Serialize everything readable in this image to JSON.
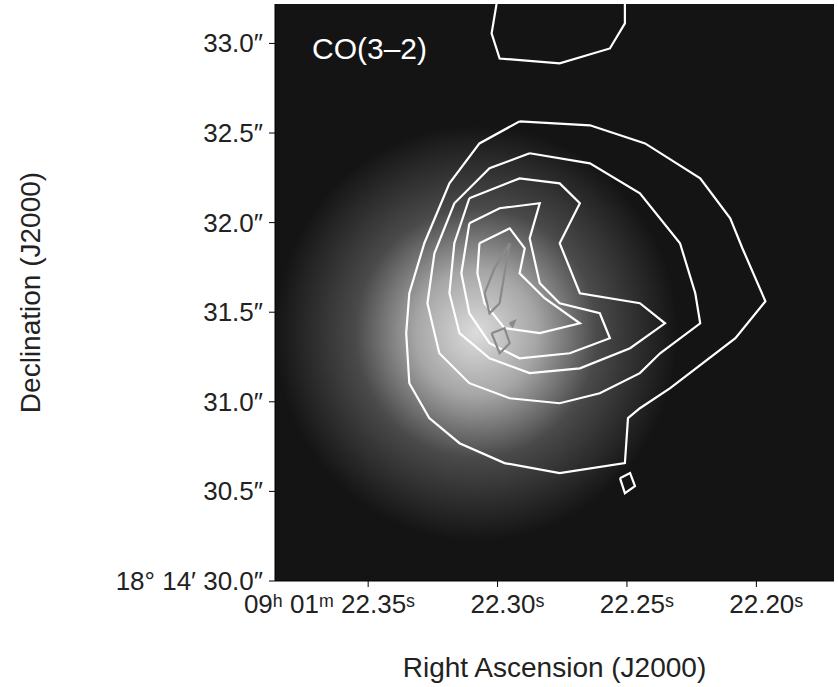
{
  "chart_data": {
    "type": "contour",
    "annotation": "CO(3–2)",
    "x_label": "Right Ascension (J2000)",
    "y_label": "Declination (J2000)",
    "xlim": [
      22.386,
      22.17
    ],
    "ylim": [
      30.0,
      33.22
    ],
    "xticks": [
      {
        "value": 22.35,
        "label": "09ʰ 01ᵐ 22.35ˢ"
      },
      {
        "value": 22.3,
        "label": "22.30ˢ"
      },
      {
        "value": 22.25,
        "label": "22.25ˢ"
      },
      {
        "value": 22.2,
        "label": "22.20ˢ"
      }
    ],
    "yticks": [
      {
        "value": 30.0,
        "label": "18° 14′ 30.0″"
      },
      {
        "value": 30.5,
        "label": "30.5″"
      },
      {
        "value": 31.0,
        "label": "31.0″"
      },
      {
        "value": 31.5,
        "label": "31.5″"
      },
      {
        "value": 32.0,
        "label": "32.0″"
      },
      {
        "value": 32.5,
        "label": "32.5″"
      },
      {
        "value": 33.0,
        "label": "33.0″"
      }
    ],
    "series": [
      {
        "color": "#ffffff",
        "x": [
          22.2915,
          22.2643,
          22.243,
          22.2217,
          22.2101,
          22.2054,
          22.1965,
          22.2081,
          22.2333,
          22.245,
          22.2496,
          22.2508,
          22.276,
          22.2973,
          22.3147,
          22.3264,
          22.3341,
          22.3353,
          22.3341,
          22.3283,
          22.3186,
          22.307,
          22.2915
        ],
        "y": [
          32.565,
          32.543,
          32.442,
          32.247,
          32.024,
          31.857,
          31.561,
          31.355,
          31.076,
          30.964,
          30.909,
          30.658,
          30.602,
          30.658,
          30.769,
          30.909,
          31.104,
          31.383,
          31.606,
          31.885,
          32.219,
          32.442,
          32.565
        ]
      },
      {
        "color": "#ffffff",
        "x": [
          22.2876,
          22.2643,
          22.245,
          22.2295,
          22.2236,
          22.2217,
          22.2372,
          22.245,
          22.2605,
          22.276,
          22.2953,
          22.3109,
          22.3225,
          22.3271,
          22.3244,
          22.3167,
          22.3031,
          22.2876
        ],
        "y": [
          32.387,
          32.331,
          32.163,
          31.885,
          31.606,
          31.438,
          31.271,
          31.16,
          31.048,
          30.992,
          31.02,
          31.104,
          31.271,
          31.55,
          31.829,
          32.108,
          32.303,
          32.387
        ]
      },
      {
        "color": "#ffffff",
        "x": [
          22.3109,
          22.2915,
          22.276,
          22.2682,
          22.276,
          22.2682,
          22.245,
          22.2353,
          22.2488,
          22.2682,
          22.2876,
          22.3031,
          22.3147,
          22.3186,
          22.3167,
          22.3109
        ],
        "y": [
          32.136,
          32.247,
          32.219,
          32.108,
          31.885,
          31.606,
          31.55,
          31.438,
          31.299,
          31.187,
          31.16,
          31.243,
          31.383,
          31.606,
          31.885,
          32.136
        ]
      },
      {
        "color": "#ffffff",
        "x": [
          22.3109,
          22.2992,
          22.2837,
          22.2876,
          22.2837,
          22.276,
          22.2605,
          22.2566,
          22.2721,
          22.2915,
          22.3031,
          22.3109,
          22.314,
          22.3109
        ],
        "y": [
          31.996,
          32.08,
          32.108,
          31.912,
          31.662,
          31.55,
          31.494,
          31.355,
          31.271,
          31.243,
          31.327,
          31.494,
          31.717,
          31.996
        ]
      },
      {
        "color": "#ffffff",
        "x": [
          22.307,
          22.2953,
          22.2895,
          22.2915,
          22.2818,
          22.2682,
          22.2837,
          22.2973,
          22.305,
          22.3078,
          22.307
        ],
        "y": [
          31.885,
          31.968,
          31.857,
          31.717,
          31.578,
          31.438,
          31.383,
          31.411,
          31.55,
          31.717,
          31.885
        ]
      },
      {
        "color": "#8a8a8a",
        "x": [
          22.305,
          22.3012,
          22.2953,
          22.2973,
          22.2992,
          22.3031,
          22.305
        ],
        "y": [
          31.606,
          31.745,
          31.885,
          31.717,
          31.55,
          31.494,
          31.606
        ]
      },
      {
        "color": "#8a8a8a",
        "x": [
          22.3023,
          22.2973,
          22.2953,
          22.2992,
          22.3023
        ],
        "y": [
          31.383,
          31.411,
          31.327,
          31.271,
          31.383
        ]
      },
      {
        "color": "#8a8a8a",
        "x": [
          22.2953,
          22.2934,
          22.2942,
          22.2953
        ],
        "y": [
          31.438,
          31.45,
          31.422,
          31.438
        ]
      },
      {
        "color": "#ffffff",
        "x": [
          22.3004,
          22.3023,
          22.2992,
          22.276,
          22.2566,
          22.2508,
          22.2508
        ],
        "y": [
          33.22,
          33.056,
          32.916,
          32.889,
          32.972,
          33.112,
          33.22
        ]
      },
      {
        "color": "#ffffff",
        "x": [
          22.2527,
          22.2488,
          22.2469,
          22.2508,
          22.2527
        ],
        "y": [
          30.574,
          30.602,
          30.529,
          30.49,
          30.574
        ]
      }
    ]
  }
}
